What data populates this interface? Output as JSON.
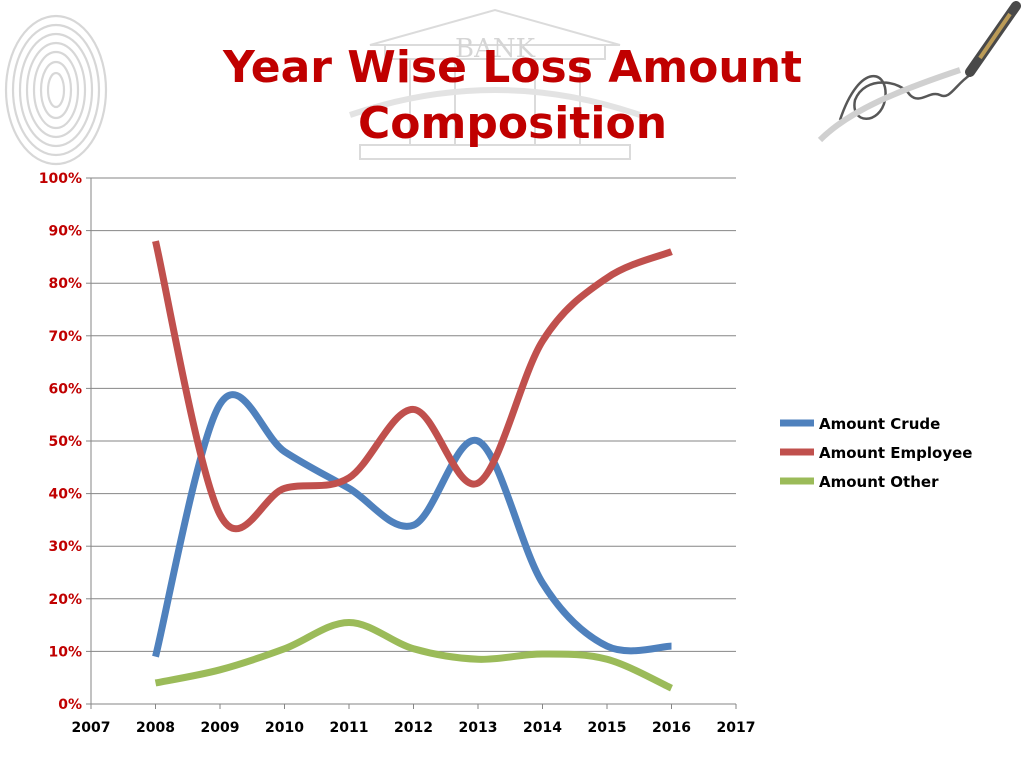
{
  "slide": {
    "title": "Year Wise Loss Amount Composition",
    "title_color": "#c00000",
    "background": "#ffffff"
  },
  "decorations": {
    "fingerprint": "fingerprint-icon",
    "bank_building": "bank-building-icon",
    "bank_sign_text": "BANK",
    "pen_signature": "pen-signature-icon"
  },
  "chart_data": {
    "type": "line",
    "title": "Year Wise Loss Amount Composition",
    "xlabel": "",
    "ylabel": "",
    "x_ticks": [
      "2007",
      "2008",
      "2009",
      "2010",
      "2011",
      "2012",
      "2013",
      "2014",
      "2015",
      "2016",
      "2017"
    ],
    "y_ticks": [
      "0%",
      "10%",
      "20%",
      "30%",
      "40%",
      "50%",
      "60%",
      "70%",
      "80%",
      "90%",
      "100%"
    ],
    "xlim": [
      2007,
      2017
    ],
    "ylim": [
      0,
      100
    ],
    "y_unit": "%",
    "grid": "horizontal",
    "smooth": true,
    "legend_position": "right",
    "x": [
      2008,
      2009,
      2010,
      2011,
      2012,
      2013,
      2014,
      2015,
      2016
    ],
    "series": [
      {
        "name": "Amount Crude",
        "color": "#4f81bd",
        "values": [
          9,
          57,
          48,
          41,
          34,
          50,
          23,
          11,
          11
        ]
      },
      {
        "name": "Amount Employee",
        "color": "#c0504d",
        "values": [
          88,
          36,
          41,
          43,
          56,
          42,
          69,
          81,
          86
        ]
      },
      {
        "name": "Amount Other",
        "color": "#9bbb59",
        "values": [
          4,
          6.5,
          10.5,
          15.5,
          10.5,
          8.5,
          9.5,
          8.5,
          3
        ]
      }
    ]
  }
}
